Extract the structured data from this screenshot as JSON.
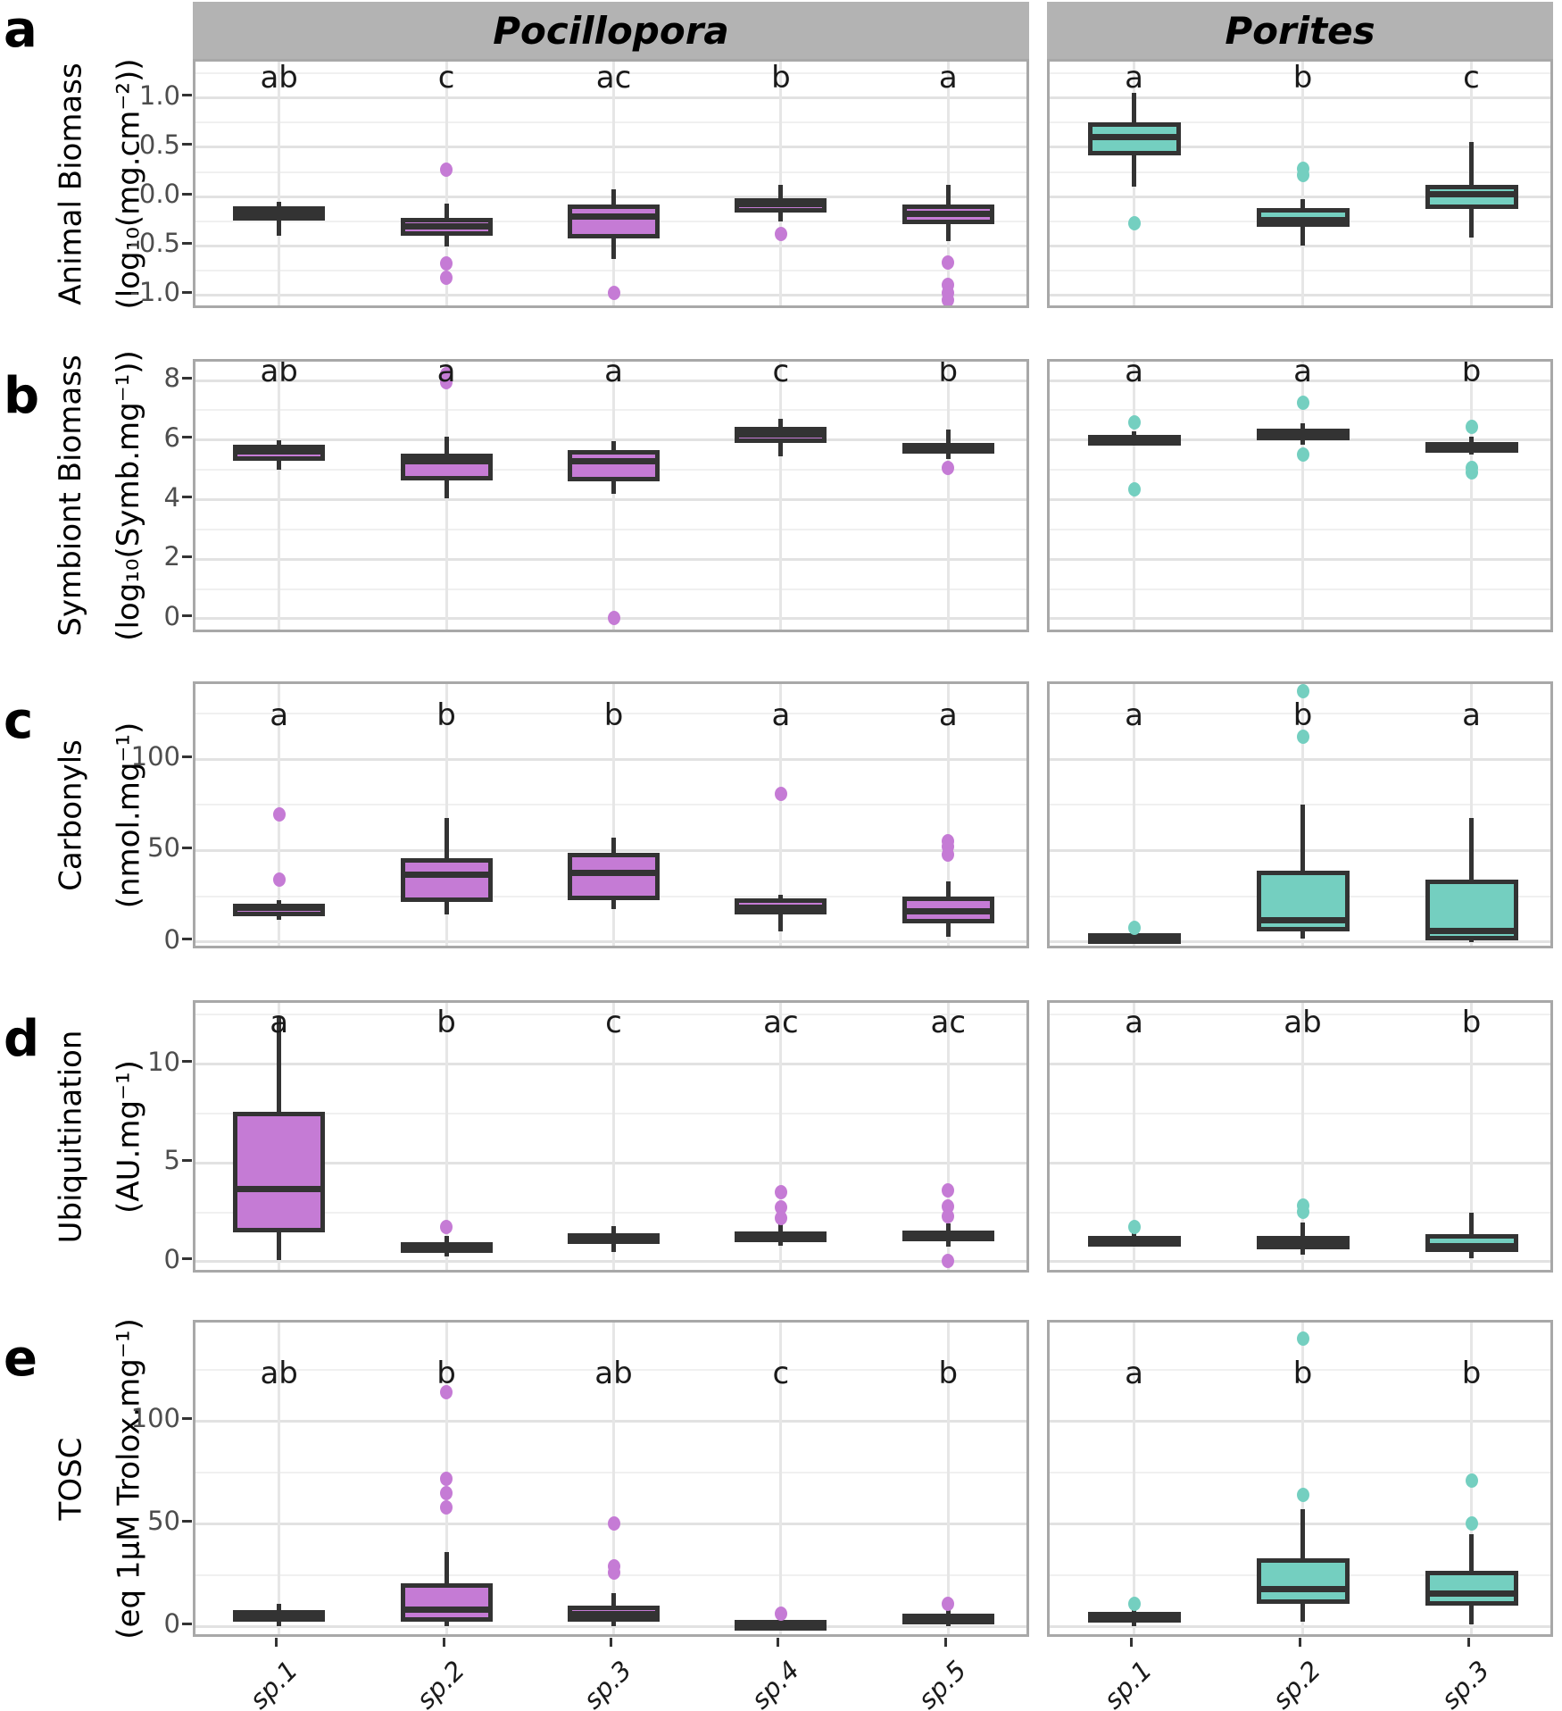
{
  "chart_data": {
    "type": "boxplot-grid",
    "strip_titles": [
      "Pocillopora",
      "Porites"
    ],
    "colors": {
      "pocillopora_fill": "#C57BD5",
      "porites_fill": "#74CFC0",
      "box_stroke": "#333333",
      "strip_bg": "#B3B3B3",
      "grid_major": "#E2E2E2",
      "grid_minor": "#F0F0F0",
      "panel_border": "#A8A8A8",
      "tick_text": "#4D4D4D"
    },
    "x_categories": {
      "Pocillopora": [
        "sp.1",
        "sp.2",
        "sp.3",
        "sp.4",
        "sp.5"
      ],
      "Porites": [
        "sp.1",
        "sp.2",
        "sp.3"
      ]
    },
    "rows": [
      {
        "panel_label": "a",
        "ylabel": [
          "Animal Biomass",
          "(log₁₀(mg.cm⁻²))"
        ],
        "ylim": [
          -1.16,
          1.37
        ],
        "yticks": [
          1.0,
          0.5,
          0.0,
          -0.5,
          -1.0
        ],
        "ytick_labels": [
          "1.0",
          "0.5",
          "0.0",
          "-0.5",
          "-1.0"
        ],
        "minor_gridlines": [
          1.25,
          0.75,
          0.25,
          -0.25,
          -0.75
        ],
        "sig_letter_y": 1.21,
        "facets": [
          {
            "facet": "Pocillopora",
            "sig_letters": [
              "ab",
              "c",
              "ac",
              "b",
              "a"
            ],
            "boxes": [
              {
                "category": "sp.1",
                "whisker_low": -0.4,
                "q1": -0.24,
                "median": -0.17,
                "q3": -0.1,
                "whisker_high": -0.05,
                "outliers": []
              },
              {
                "category": "sp.2",
                "whisker_low": -0.51,
                "q1": -0.4,
                "median": -0.3,
                "q3": -0.22,
                "whisker_high": -0.07,
                "outliers": [
                  0.27,
                  -0.68,
                  -0.82
                ]
              },
              {
                "category": "sp.3",
                "whisker_low": -0.63,
                "q1": -0.43,
                "median": -0.2,
                "q3": -0.08,
                "whisker_high": 0.07,
                "outliers": [
                  -0.98
                ]
              },
              {
                "category": "sp.4",
                "whisker_low": -0.25,
                "q1": -0.16,
                "median": -0.08,
                "q3": -0.02,
                "whisker_high": 0.12,
                "outliers": [
                  -0.38
                ]
              },
              {
                "category": "sp.5",
                "whisker_low": -0.45,
                "q1": -0.28,
                "median": -0.18,
                "q3": -0.08,
                "whisker_high": 0.12,
                "outliers": [
                  -0.67,
                  -0.9,
                  -0.98,
                  -1.05
                ]
              }
            ]
          },
          {
            "facet": "Porites",
            "sig_letters": [
              "a",
              "b",
              "c"
            ],
            "boxes": [
              {
                "category": "sp.1",
                "whisker_low": 0.1,
                "q1": 0.42,
                "median": 0.6,
                "q3": 0.75,
                "whisker_high": 1.05,
                "outliers": [
                  -0.27
                ]
              },
              {
                "category": "sp.2",
                "whisker_low": -0.5,
                "q1": -0.31,
                "median": -0.24,
                "q3": -0.12,
                "whisker_high": -0.03,
                "outliers": [
                  0.28,
                  0.22
                ]
              },
              {
                "category": "sp.3",
                "whisker_low": -0.42,
                "q1": -0.13,
                "median": 0.02,
                "q3": 0.12,
                "whisker_high": 0.55,
                "outliers": []
              }
            ]
          }
        ]
      },
      {
        "panel_label": "b",
        "ylabel": [
          "Symbiont Biomass",
          "(log₁₀(Symb.mg⁻¹))"
        ],
        "ylim": [
          -0.54,
          8.63
        ],
        "yticks": [
          8,
          6,
          4,
          2,
          0
        ],
        "ytick_labels": [
          "8",
          "6",
          "4",
          "2",
          "0"
        ],
        "minor_gridlines": [
          7,
          5,
          3,
          1
        ],
        "sig_letter_y": 8.3,
        "facets": [
          {
            "facet": "Pocillopora",
            "sig_letters": [
              "ab",
              "a",
              "a",
              "c",
              "b"
            ],
            "boxes": [
              {
                "category": "sp.1",
                "whisker_low": 5.0,
                "q1": 5.3,
                "median": 5.62,
                "q3": 5.85,
                "whisker_high": 6.0,
                "outliers": []
              },
              {
                "category": "sp.2",
                "whisker_low": 4.05,
                "q1": 4.65,
                "median": 5.28,
                "q3": 5.55,
                "whisker_high": 6.1,
                "outliers": [
                  8.2,
                  7.95
                ]
              },
              {
                "category": "sp.3",
                "whisker_low": 4.2,
                "q1": 4.6,
                "median": 5.3,
                "q3": 5.65,
                "whisker_high": 5.95,
                "outliers": [
                  0.02
                ]
              },
              {
                "category": "sp.4",
                "whisker_low": 5.45,
                "q1": 5.9,
                "median": 6.2,
                "q3": 6.45,
                "whisker_high": 6.7,
                "outliers": []
              },
              {
                "category": "sp.5",
                "whisker_low": 5.35,
                "q1": 5.55,
                "median": 5.72,
                "q3": 5.9,
                "whisker_high": 6.35,
                "outliers": [
                  5.05
                ]
              }
            ]
          },
          {
            "facet": "Porites",
            "sig_letters": [
              "a",
              "a",
              "b"
            ],
            "boxes": [
              {
                "category": "sp.1",
                "whisker_low": 5.8,
                "q1": 5.92,
                "median": 6.05,
                "q3": 6.18,
                "whisker_high": 6.3,
                "outliers": [
                  6.6,
                  4.35
                ]
              },
              {
                "category": "sp.2",
                "whisker_low": 5.85,
                "q1": 6.0,
                "median": 6.18,
                "q3": 6.38,
                "whisker_high": 6.55,
                "outliers": [
                  7.25,
                  5.5
                ]
              },
              {
                "category": "sp.3",
                "whisker_low": 5.5,
                "q1": 5.62,
                "median": 5.78,
                "q3": 5.92,
                "whisker_high": 6.1,
                "outliers": [
                  6.45,
                  5.05,
                  4.9
                ]
              }
            ]
          }
        ]
      },
      {
        "panel_label": "c",
        "ylabel": [
          "Carbonyls",
          "(nmol.mg⁻¹)"
        ],
        "ylim": [
          -4.9,
          141
        ],
        "yticks": [
          100,
          50,
          0
        ],
        "ytick_labels": [
          "100",
          "50",
          "0"
        ],
        "minor_gridlines": [
          125,
          75,
          25
        ],
        "sig_letter_y": 124,
        "facets": [
          {
            "facet": "Pocillopora",
            "sig_letters": [
              "a",
              "b",
              "b",
              "a",
              "a"
            ],
            "boxes": [
              {
                "category": "sp.1",
                "whisker_low": 12,
                "q1": 14,
                "median": 19,
                "q3": 21,
                "whisker_high": 23,
                "outliers": [
                  70,
                  34
                ]
              },
              {
                "category": "sp.2",
                "whisker_low": 15,
                "q1": 22,
                "median": 37,
                "q3": 46,
                "whisker_high": 68,
                "outliers": []
              },
              {
                "category": "sp.3",
                "whisker_low": 18,
                "q1": 23,
                "median": 38,
                "q3": 49,
                "whisker_high": 57,
                "outliers": []
              },
              {
                "category": "sp.4",
                "whisker_low": 6,
                "q1": 15,
                "median": 19,
                "q3": 24,
                "whisker_high": 26,
                "outliers": [
                  81
                ]
              },
              {
                "category": "sp.5",
                "whisker_low": 3,
                "q1": 10,
                "median": 17,
                "q3": 25,
                "whisker_high": 33,
                "outliers": [
                  55,
                  52,
                  48
                ]
              }
            ]
          },
          {
            "facet": "Porites",
            "sig_letters": [
              "a",
              "b",
              "a"
            ],
            "boxes": [
              {
                "category": "sp.1",
                "whisker_low": 0,
                "q1": 1,
                "median": 3,
                "q3": 5,
                "whisker_high": 6,
                "outliers": [
                  8
                ]
              },
              {
                "category": "sp.2",
                "whisker_low": 2,
                "q1": 6,
                "median": 12,
                "q3": 39,
                "whisker_high": 75,
                "outliers": [
                  137,
                  112
                ]
              },
              {
                "category": "sp.3",
                "whisker_low": 0,
                "q1": 1,
                "median": 6,
                "q3": 34,
                "whisker_high": 68,
                "outliers": []
              }
            ]
          }
        ]
      },
      {
        "panel_label": "d",
        "ylabel": [
          "Ubiquitination",
          "(AU.mg⁻¹)"
        ],
        "ylim": [
          -0.68,
          13.1
        ],
        "yticks": [
          10,
          5,
          0
        ],
        "ytick_labels": [
          "10",
          "5",
          "0"
        ],
        "minor_gridlines": [
          12.5,
          7.5,
          2.5
        ],
        "sig_letter_y": 12.1,
        "facets": [
          {
            "facet": "Pocillopora",
            "sig_letters": [
              "a",
              "b",
              "c",
              "ac",
              "ac"
            ],
            "boxes": [
              {
                "category": "sp.1",
                "whisker_low": 0.1,
                "q1": 1.5,
                "median": 3.7,
                "q3": 7.6,
                "whisker_high": 12.4,
                "outliers": []
              },
              {
                "category": "sp.2",
                "whisker_low": 0.25,
                "q1": 0.45,
                "median": 0.62,
                "q3": 1.0,
                "whisker_high": 1.3,
                "outliers": [
                  1.75
                ]
              },
              {
                "category": "sp.3",
                "whisker_low": 0.5,
                "q1": 1.05,
                "median": 1.3,
                "q3": 1.45,
                "whisker_high": 1.8,
                "outliers": []
              },
              {
                "category": "sp.4",
                "whisker_low": 0.8,
                "q1": 1.0,
                "median": 1.28,
                "q3": 1.55,
                "whisker_high": 1.9,
                "outliers": [
                  3.5,
                  2.75,
                  2.2
                ]
              },
              {
                "category": "sp.5",
                "whisker_low": 0.75,
                "q1": 1.05,
                "median": 1.28,
                "q3": 1.6,
                "whisker_high": 1.95,
                "outliers": [
                  3.6,
                  2.8,
                  2.3,
                  0.05
                ]
              }
            ]
          },
          {
            "facet": "Porites",
            "sig_letters": [
              "a",
              "ab",
              "b"
            ],
            "boxes": [
              {
                "category": "sp.1",
                "whisker_low": 0.95,
                "q1": 1.02,
                "median": 1.15,
                "q3": 1.3,
                "whisker_high": 1.45,
                "outliers": [
                  1.75
                ]
              },
              {
                "category": "sp.2",
                "whisker_low": 0.35,
                "q1": 0.62,
                "median": 1.02,
                "q3": 1.3,
                "whisker_high": 2.0,
                "outliers": [
                  2.85,
                  2.55
                ]
              },
              {
                "category": "sp.3",
                "whisker_low": 0.2,
                "q1": 0.5,
                "median": 0.8,
                "q3": 1.42,
                "whisker_high": 2.5,
                "outliers": []
              }
            ]
          }
        ]
      },
      {
        "panel_label": "e",
        "ylabel": [
          "TOSC",
          "(eq 1µM Trolox.mg⁻¹)"
        ],
        "ylim": [
          -6.5,
          148
        ],
        "yticks": [
          100,
          50,
          0
        ],
        "ytick_labels": [
          "100",
          "50",
          "0"
        ],
        "minor_gridlines": [
          125,
          75,
          25
        ],
        "sig_letter_y": 123,
        "facets": [
          {
            "facet": "Pocillopora",
            "sig_letters": [
              "ab",
              "b",
              "ab",
              "c",
              "b"
            ],
            "boxes": [
              {
                "category": "sp.1",
                "whisker_low": 0,
                "q1": 2,
                "median": 5,
                "q3": 8,
                "whisker_high": 11,
                "outliers": []
              },
              {
                "category": "sp.2",
                "whisker_low": 0,
                "q1": 2,
                "median": 8,
                "q3": 21,
                "whisker_high": 36,
                "outliers": [
                  114,
                  72,
                  65,
                  58
                ]
              },
              {
                "category": "sp.3",
                "whisker_low": 0,
                "q1": 2,
                "median": 6,
                "q3": 10,
                "whisker_high": 16,
                "outliers": [
                  50,
                  29,
                  26
                ]
              },
              {
                "category": "sp.4",
                "whisker_low": 0,
                "q1": 0.5,
                "median": 1.5,
                "q3": 3,
                "whisker_high": 4.5,
                "outliers": [
                  6
                ]
              },
              {
                "category": "sp.5",
                "whisker_low": 0,
                "q1": 1,
                "median": 3.5,
                "q3": 6,
                "whisker_high": 9,
                "outliers": [
                  11
                ]
              }
            ]
          },
          {
            "facet": "Porites",
            "sig_letters": [
              "a",
              "b",
              "b"
            ],
            "boxes": [
              {
                "category": "sp.1",
                "whisker_low": 0,
                "q1": 2,
                "median": 4.5,
                "q3": 7,
                "whisker_high": 9,
                "outliers": [
                  11
                ]
              },
              {
                "category": "sp.2",
                "whisker_low": 2,
                "q1": 11,
                "median": 18,
                "q3": 33,
                "whisker_high": 57,
                "outliers": [
                  140,
                  64
                ]
              },
              {
                "category": "sp.3",
                "whisker_low": 1,
                "q1": 10,
                "median": 16,
                "q3": 27,
                "whisker_high": 45,
                "outliers": [
                  71,
                  50
                ]
              }
            ]
          }
        ]
      }
    ]
  }
}
